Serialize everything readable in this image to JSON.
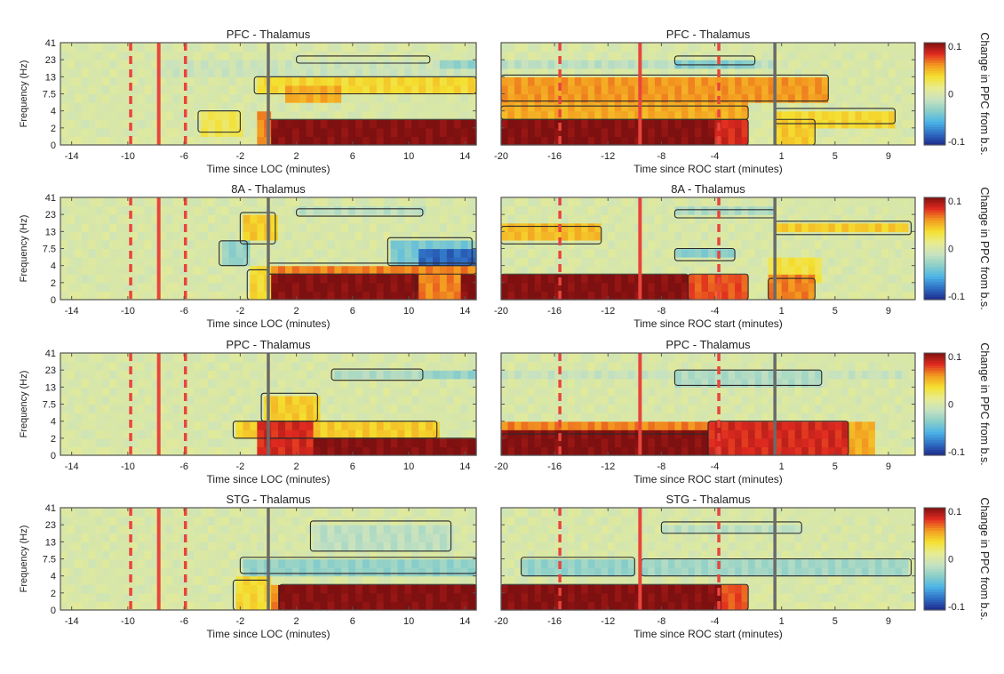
{
  "colors": {
    "event_line": "#e8453c",
    "reference_line": "#6a6a6a",
    "contour": "#2a2a2a",
    "colormap": [
      "#1d2a8c",
      "#2e6fc4",
      "#4cb4e6",
      "#8ccfc8",
      "#c8e2c0",
      "#e8ec90",
      "#f4e030",
      "#f39a20",
      "#e02a20",
      "#7d1010"
    ]
  },
  "chart_data": [
    {
      "type": "heatmap",
      "title": "PFC -  Thalamus",
      "xlabel": "Time since LOC (minutes)",
      "ylabel": "Frequency (Hz)",
      "xlim": [
        -14.8,
        14.8
      ],
      "xticks": [
        -14,
        -10,
        -6,
        -2,
        2,
        6,
        10,
        14
      ],
      "yticks": [
        0,
        2,
        4,
        7.5,
        13,
        23,
        41
      ],
      "clim": [
        -0.1,
        0.1
      ],
      "event_lines": [
        {
          "x": -9.8,
          "style": "dashed"
        },
        {
          "x": -7.8,
          "style": "solid"
        },
        {
          "x": -5.9,
          "style": "dashed"
        }
      ],
      "reference_line": 0,
      "regions": [
        {
          "t": [
            -8,
            14.8
          ],
          "f": [
            13,
            23
          ],
          "v": -0.008
        },
        {
          "t": [
            -1,
            14.8
          ],
          "f": [
            7.5,
            13
          ],
          "v": 0.035,
          "sig": true
        },
        {
          "t": [
            1,
            5
          ],
          "f": [
            6,
            11
          ],
          "v": 0.05
        },
        {
          "t": [
            -0.8,
            0
          ],
          "f": [
            0,
            4
          ],
          "v": 0.06
        },
        {
          "t": [
            0,
            14.8
          ],
          "f": [
            0,
            3
          ],
          "v": 0.1,
          "sig": true
        },
        {
          "t": [
            -5,
            -2
          ],
          "f": [
            1.5,
            4
          ],
          "v": 0.025,
          "sig": true
        },
        {
          "t": [
            12,
            14.8
          ],
          "f": [
            20,
            26
          ],
          "v": -0.03
        },
        {
          "t": [
            2,
            11.5
          ],
          "f": [
            21,
            27
          ],
          "v": -0.02,
          "sig": true
        }
      ]
    },
    {
      "type": "heatmap",
      "title": "PFC -  Thalamus",
      "xlabel": "Time since ROC start (minutes)",
      "ylabel": "",
      "xlim": [
        -20,
        11
      ],
      "xticks": [
        -20,
        -16,
        -12,
        -8,
        -4,
        1,
        5,
        9
      ],
      "yticks": [
        0,
        2,
        4,
        7.5,
        13,
        23,
        41
      ],
      "clim": [
        -0.1,
        0.1
      ],
      "colorbar": {
        "ticks": [
          "0.1",
          "0",
          "-0.1"
        ],
        "label": "Change in PPC from b.s."
      },
      "event_lines": [
        {
          "x": -15.6,
          "style": "dashed"
        },
        {
          "x": -9.6,
          "style": "solid"
        },
        {
          "x": -3.7,
          "style": "dashed"
        }
      ],
      "reference_line": 0.5,
      "regions": [
        {
          "t": [
            -20,
            0.5
          ],
          "f": [
            17,
            25
          ],
          "v": -0.015
        },
        {
          "t": [
            -20,
            4.5
          ],
          "f": [
            6,
            14
          ],
          "v": 0.055,
          "sig": true
        },
        {
          "t": [
            -20,
            -1.5
          ],
          "f": [
            3,
            5
          ],
          "v": 0.05,
          "sig": true
        },
        {
          "t": [
            -20,
            -1.5
          ],
          "f": [
            0,
            3
          ],
          "v": 0.1,
          "sig": true
        },
        {
          "t": [
            -4,
            -1.5
          ],
          "f": [
            0,
            3
          ],
          "v": 0.08
        },
        {
          "t": [
            -7,
            -1
          ],
          "f": [
            20,
            27
          ],
          "v": -0.035,
          "sig": true
        },
        {
          "t": [
            0.5,
            9.5
          ],
          "f": [
            2.5,
            4.5
          ],
          "v": 0.035,
          "sig": true
        },
        {
          "t": [
            0.5,
            3.5
          ],
          "f": [
            0,
            3
          ],
          "v": 0.04,
          "sig": true
        }
      ]
    },
    {
      "type": "heatmap",
      "title": "8A -  Thalamus",
      "xlabel": "Time since LOC (minutes)",
      "ylabel": "Frequency (Hz)",
      "xlim": [
        -14.8,
        14.8
      ],
      "xticks": [
        -14,
        -10,
        -6,
        -2,
        2,
        6,
        10,
        14
      ],
      "yticks": [
        0,
        2,
        4,
        7.5,
        13,
        23,
        41
      ],
      "clim": [
        -0.1,
        0.1
      ],
      "event_lines": [
        {
          "x": -9.8,
          "style": "dashed"
        },
        {
          "x": -7.8,
          "style": "solid"
        },
        {
          "x": -5.9,
          "style": "dashed"
        }
      ],
      "reference_line": 0,
      "regions": [
        {
          "t": [
            0,
            14.8
          ],
          "f": [
            3,
            4.5
          ],
          "v": 0.06,
          "sig": true
        },
        {
          "t": [
            0,
            10.5
          ],
          "f": [
            0,
            3
          ],
          "v": 0.1,
          "sig": true
        },
        {
          "t": [
            10.5,
            13.5
          ],
          "f": [
            0,
            3
          ],
          "v": 0.06
        },
        {
          "t": [
            13.5,
            14.8
          ],
          "f": [
            0,
            3
          ],
          "v": 0.1
        },
        {
          "t": [
            -1.5,
            0
          ],
          "f": [
            0,
            3.5
          ],
          "v": 0.035,
          "sig": true
        },
        {
          "t": [
            -2,
            0.5
          ],
          "f": [
            9,
            25
          ],
          "v": 0.04,
          "sig": true
        },
        {
          "t": [
            -3.5,
            -1.5
          ],
          "f": [
            4,
            10
          ],
          "v": -0.03,
          "sig": true
        },
        {
          "t": [
            8.5,
            14.5
          ],
          "f": [
            4,
            11
          ],
          "v": -0.04,
          "sig": true
        },
        {
          "t": [
            10.5,
            14.8
          ],
          "f": [
            4,
            7.5
          ],
          "v": -0.08
        },
        {
          "t": [
            2,
            11
          ],
          "f": [
            22,
            29
          ],
          "v": -0.015,
          "sig": true
        }
      ]
    },
    {
      "type": "heatmap",
      "title": "8A -  Thalamus",
      "xlabel": "Time since ROC start (minutes)",
      "ylabel": "",
      "xlim": [
        -20,
        11
      ],
      "xticks": [
        -20,
        -16,
        -12,
        -8,
        -4,
        1,
        5,
        9
      ],
      "yticks": [
        0,
        2,
        4,
        7.5,
        13,
        23,
        41
      ],
      "clim": [
        -0.1,
        0.1
      ],
      "colorbar": {
        "ticks": [
          "0.1",
          "0",
          "-0.1"
        ],
        "label": "Change in PPC from b.s."
      },
      "event_lines": [
        {
          "x": -15.6,
          "style": "dashed"
        },
        {
          "x": -9.6,
          "style": "solid"
        },
        {
          "x": -3.7,
          "style": "dashed"
        }
      ],
      "reference_line": 0.5,
      "regions": [
        {
          "t": [
            -20,
            -6
          ],
          "f": [
            0,
            3
          ],
          "v": 0.1,
          "sig": true
        },
        {
          "t": [
            -6,
            -1.5
          ],
          "f": [
            0,
            3
          ],
          "v": 0.07,
          "sig": true
        },
        {
          "t": [
            -20,
            -12.5
          ],
          "f": [
            9,
            16
          ],
          "v": 0.045,
          "sig": true
        },
        {
          "t": [
            -7,
            0.5
          ],
          "f": [
            21,
            28
          ],
          "v": -0.02,
          "sig": true
        },
        {
          "t": [
            -7,
            -2.5
          ],
          "f": [
            5,
            7.5
          ],
          "v": -0.035,
          "sig": true
        },
        {
          "t": [
            0,
            4
          ],
          "f": [
            2,
            5
          ],
          "v": 0.03
        },
        {
          "t": [
            0,
            3.5
          ],
          "f": [
            0,
            2.5
          ],
          "v": 0.06,
          "sig": true
        },
        {
          "t": [
            0.5,
            10.7
          ],
          "f": [
            12,
            19
          ],
          "v": 0.04,
          "sig": true
        }
      ]
    },
    {
      "type": "heatmap",
      "title": "PPC -  Thalamus",
      "xlabel": "Time since LOC (minutes)",
      "ylabel": "Frequency (Hz)",
      "xlim": [
        -14.8,
        14.8
      ],
      "xticks": [
        -14,
        -10,
        -6,
        -2,
        2,
        6,
        10,
        14
      ],
      "yticks": [
        0,
        2,
        4,
        7.5,
        13,
        23,
        41
      ],
      "clim": [
        -0.1,
        0.1
      ],
      "event_lines": [
        {
          "x": -9.8,
          "style": "dashed"
        },
        {
          "x": -7.8,
          "style": "solid"
        },
        {
          "x": -5.9,
          "style": "dashed"
        }
      ],
      "reference_line": 0,
      "regions": [
        {
          "t": [
            -2.5,
            12
          ],
          "f": [
            2,
            4
          ],
          "v": 0.04,
          "sig": true
        },
        {
          "t": [
            -0.5,
            3.5
          ],
          "f": [
            4,
            11
          ],
          "v": 0.04,
          "sig": true
        },
        {
          "t": [
            0,
            14.8
          ],
          "f": [
            0,
            2
          ],
          "v": 0.1,
          "sig": true
        },
        {
          "t": [
            -0.8,
            3
          ],
          "f": [
            0,
            4
          ],
          "v": 0.08
        },
        {
          "t": [
            11,
            14.8
          ],
          "f": [
            20,
            24
          ],
          "v": -0.03
        },
        {
          "t": [
            4.5,
            11
          ],
          "f": [
            17,
            24
          ],
          "v": -0.02,
          "sig": true
        }
      ]
    },
    {
      "type": "heatmap",
      "title": "PPC -  Thalamus",
      "xlabel": "Time since ROC start (minutes)",
      "ylabel": "",
      "xlim": [
        -20,
        11
      ],
      "xticks": [
        -20,
        -16,
        -12,
        -8,
        -4,
        1,
        5,
        9
      ],
      "yticks": [
        0,
        2,
        4,
        7.5,
        13,
        23,
        41
      ],
      "clim": [
        -0.1,
        0.1
      ],
      "colorbar": {
        "ticks": [
          "0.1",
          "0",
          "-0.1"
        ],
        "label": "Change in PPC from b.s."
      },
      "event_lines": [
        {
          "x": -15.6,
          "style": "dashed"
        },
        {
          "x": -9.6,
          "style": "solid"
        },
        {
          "x": -3.7,
          "style": "dashed"
        }
      ],
      "reference_line": 0.5,
      "regions": [
        {
          "t": [
            -20,
            10.7
          ],
          "f": [
            20,
            26
          ],
          "v": -0.01
        },
        {
          "t": [
            -20,
            -4.5
          ],
          "f": [
            2.5,
            4
          ],
          "v": 0.06
        },
        {
          "t": [
            -20,
            -4.5
          ],
          "f": [
            0,
            2.5
          ],
          "v": 0.1,
          "sig": true
        },
        {
          "t": [
            -4.5,
            6
          ],
          "f": [
            0,
            4
          ],
          "v": 0.08,
          "sig": true
        },
        {
          "t": [
            6,
            8
          ],
          "f": [
            0,
            4
          ],
          "v": 0.05
        },
        {
          "t": [
            -7,
            4
          ],
          "f": [
            14,
            23
          ],
          "v": -0.02,
          "sig": true
        }
      ]
    },
    {
      "type": "heatmap",
      "title": "STG -  Thalamus",
      "xlabel": "Time since LOC (minutes)",
      "ylabel": "Frequency (Hz)",
      "xlim": [
        -14.8,
        14.8
      ],
      "xticks": [
        -14,
        -10,
        -6,
        -2,
        2,
        6,
        10,
        14
      ],
      "yticks": [
        0,
        2,
        4,
        7.5,
        13,
        23,
        41
      ],
      "clim": [
        -0.1,
        0.1
      ],
      "event_lines": [
        {
          "x": -9.8,
          "style": "dashed"
        },
        {
          "x": -7.8,
          "style": "solid"
        },
        {
          "x": -5.9,
          "style": "dashed"
        }
      ],
      "reference_line": 0,
      "regions": [
        {
          "t": [
            -2,
            14.8
          ],
          "f": [
            4.5,
            8
          ],
          "v": -0.03,
          "sig": true
        },
        {
          "t": [
            3,
            13
          ],
          "f": [
            10,
            27
          ],
          "v": -0.015,
          "sig": true
        },
        {
          "t": [
            -2.5,
            0
          ],
          "f": [
            0,
            3.5
          ],
          "v": 0.035,
          "sig": true
        },
        {
          "t": [
            0,
            0.8
          ],
          "f": [
            0,
            3
          ],
          "v": 0.06
        },
        {
          "t": [
            0.8,
            14.8
          ],
          "f": [
            0,
            3
          ],
          "v": 0.1,
          "sig": true
        }
      ]
    },
    {
      "type": "heatmap",
      "title": "STG -  Thalamus",
      "xlabel": "Time since ROC start (minutes)",
      "ylabel": "",
      "xlim": [
        -20,
        11
      ],
      "xticks": [
        -20,
        -16,
        -12,
        -8,
        -4,
        1,
        5,
        9
      ],
      "yticks": [
        0,
        2,
        4,
        7.5,
        13,
        23,
        41
      ],
      "clim": [
        -0.1,
        0.1
      ],
      "colorbar": {
        "ticks": [
          "0.1",
          "0",
          "-0.1"
        ],
        "label": "Change in PPC from b.s."
      },
      "event_lines": [
        {
          "x": -15.6,
          "style": "dashed"
        },
        {
          "x": -9.6,
          "style": "solid"
        },
        {
          "x": -3.7,
          "style": "dashed"
        }
      ],
      "reference_line": 0.5,
      "regions": [
        {
          "t": [
            -20,
            -1.5
          ],
          "f": [
            0,
            3
          ],
          "v": 0.1,
          "sig": true
        },
        {
          "t": [
            -3.5,
            -1.5
          ],
          "f": [
            0,
            3
          ],
          "v": 0.07
        },
        {
          "t": [
            -18.5,
            -10
          ],
          "f": [
            4,
            8
          ],
          "v": -0.03,
          "sig": true
        },
        {
          "t": [
            -9.5,
            10.7
          ],
          "f": [
            4,
            7.5
          ],
          "v": -0.025,
          "sig": true
        },
        {
          "t": [
            -8,
            2.5
          ],
          "f": [
            18,
            26
          ],
          "v": -0.015,
          "sig": true
        }
      ]
    }
  ]
}
